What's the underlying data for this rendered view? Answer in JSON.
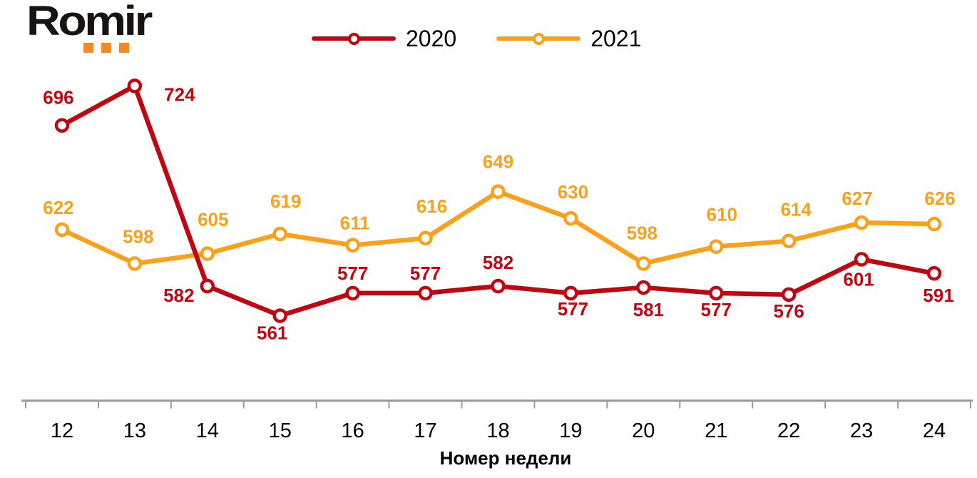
{
  "logo": {
    "text": "Romir",
    "text_color": "#171310",
    "accent_color": "#F6891F"
  },
  "chart_data": {
    "type": "line",
    "x": [
      12,
      13,
      14,
      15,
      16,
      17,
      18,
      19,
      20,
      21,
      22,
      23,
      24
    ],
    "xlabel": "Номер недели",
    "ylim": [
      500,
      750
    ],
    "grid": false,
    "legend_position": "top-center",
    "axis_color": "#9C9C9C",
    "tick_label_color": "#000000",
    "series": [
      {
        "name": "2020",
        "color": "#C00711",
        "values": [
          696,
          724,
          582,
          561,
          577,
          577,
          582,
          577,
          581,
          577,
          576,
          601,
          591
        ],
        "label_offsets": [
          [
            -5,
            -30
          ],
          [
            63,
            21
          ],
          [
            -40,
            22
          ],
          [
            -11,
            33
          ],
          [
            0,
            -19
          ],
          [
            0,
            -19
          ],
          [
            0,
            -24
          ],
          [
            3,
            31
          ],
          [
            7,
            40
          ],
          [
            0,
            32
          ],
          [
            0,
            32
          ],
          [
            -4,
            37
          ],
          [
            6,
            40
          ]
        ]
      },
      {
        "name": "2021",
        "color": "#F9A11B",
        "values": [
          622,
          598,
          605,
          619,
          611,
          616,
          649,
          630,
          598,
          610,
          614,
          627,
          626
        ],
        "label_offsets": [
          [
            -5,
            -22
          ],
          [
            5,
            -29
          ],
          [
            8,
            -39
          ],
          [
            8,
            -37
          ],
          [
            3,
            -22
          ],
          [
            9,
            -36
          ],
          [
            0,
            -33
          ],
          [
            3,
            -28
          ],
          [
            -2,
            -34
          ],
          [
            8,
            -36
          ],
          [
            10,
            -35
          ],
          [
            -6,
            -25
          ],
          [
            8,
            -27
          ]
        ]
      }
    ]
  }
}
